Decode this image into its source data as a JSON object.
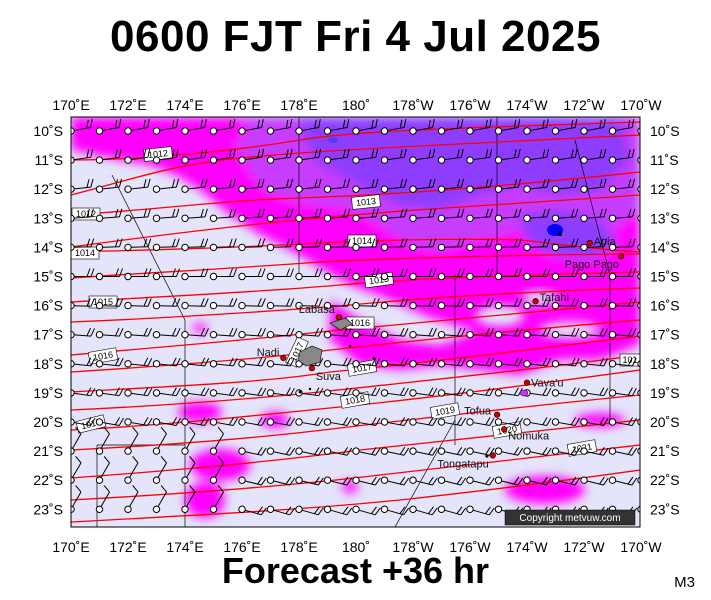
{
  "title": "0600 FJT Fri 4 Jul 2025",
  "subtitle": "Forecast +36 hr",
  "model": "M3",
  "copyright": "Copyright metvuw.com",
  "longitude_labels": [
    "170˚E",
    "172˚E",
    "174˚E",
    "176˚E",
    "178˚E",
    "180˚",
    "178˚W",
    "176˚W",
    "174˚W",
    "172˚W",
    "170˚W"
  ],
  "latitude_labels": [
    "10˚S",
    "11˚S",
    "12˚S",
    "13˚S",
    "14˚S",
    "15˚S",
    "16˚S",
    "17˚S",
    "18˚S",
    "19˚S",
    "20˚S",
    "21˚S",
    "22˚S",
    "23˚S"
  ],
  "places": [
    {
      "name": "Apia",
      "lon": -171.8,
      "lat": -13.85
    },
    {
      "name": "Pago Pago",
      "lon": -170.7,
      "lat": -14.3
    },
    {
      "name": "Tafahi",
      "lon": -173.7,
      "lat": -15.85
    },
    {
      "name": "Labasa",
      "lon": 179.4,
      "lat": -16.4
    },
    {
      "name": "Nadi",
      "lon": 177.45,
      "lat": -17.8
    },
    {
      "name": "Suva",
      "lon": 178.45,
      "lat": -18.15
    },
    {
      "name": "Vava'u",
      "lon": -174.0,
      "lat": -18.65
    },
    {
      "name": "Tofua",
      "lon": -175.05,
      "lat": -19.75
    },
    {
      "name": "Nomuka",
      "lon": -174.8,
      "lat": -20.25
    },
    {
      "name": "Tongatapu",
      "lon": -175.2,
      "lat": -21.15
    }
  ],
  "isobar_labels": [
    "1012",
    "1013",
    "1014",
    "1015",
    "1016",
    "1017",
    "1018",
    "1019",
    "1020",
    "1021"
  ],
  "colors": {
    "background_field": "#e4e4fa",
    "rain_light": "#ff00ff",
    "rain_medium": "#cc33ff",
    "rain_heavy": "#8a3cff",
    "rain_core": "#0000ff",
    "isobar": "#ff0000",
    "wind": "#000000"
  },
  "wind": {
    "station_symbol": "open-circle",
    "barb_style": "knots-flags"
  }
}
